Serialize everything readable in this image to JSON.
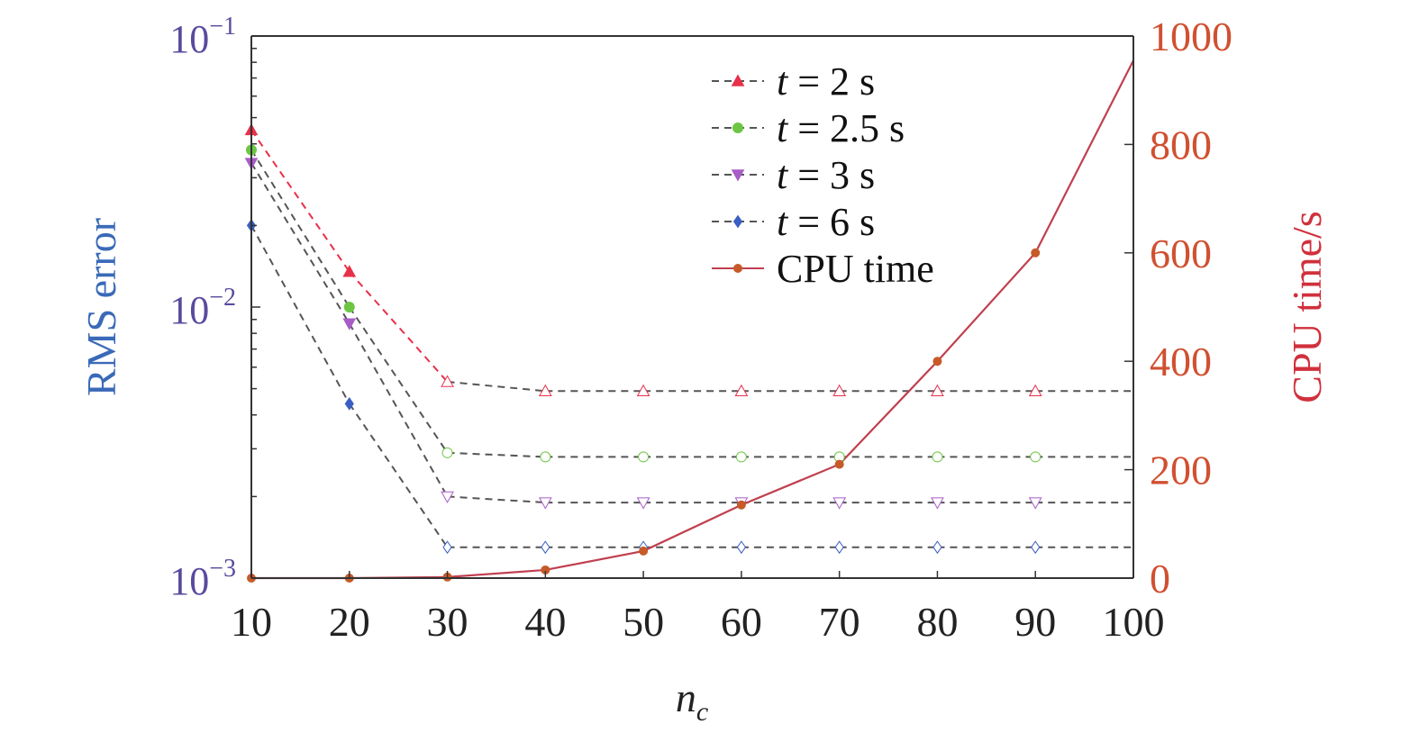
{
  "chart_data": {
    "type": "line",
    "x": [
      10,
      20,
      30,
      40,
      50,
      60,
      70,
      80,
      90,
      100
    ],
    "x_tick_labels": [
      "10",
      "20",
      "30",
      "40",
      "50",
      "60",
      "70",
      "80",
      "90",
      "100"
    ],
    "xlabel_main": "n",
    "xlabel_sub": "c",
    "xlim": [
      10,
      100
    ],
    "ylabel_left": "RMS error",
    "ylim_left": [
      0.001,
      0.1
    ],
    "y_scale_left": "log",
    "y_left_ticks": [
      {
        "base": "10",
        "exp": "−1",
        "value": 0.1
      },
      {
        "base": "10",
        "exp": "−2",
        "value": 0.01
      },
      {
        "base": "10",
        "exp": "−3",
        "value": 0.001
      }
    ],
    "ylabel_right": "CPU time/s",
    "ylim_right": [
      0,
      1000
    ],
    "y_right_ticks": [
      "0",
      "200",
      "400",
      "600",
      "800",
      "1000"
    ],
    "legend_position": "top-right",
    "grid": false,
    "series": [
      {
        "name_italic": "t",
        "name_rest": " = 2 s",
        "axis": "left",
        "marker": "triangle-up",
        "color": "#e8304a",
        "x": [
          10,
          20,
          30,
          40,
          50,
          60,
          70,
          80,
          90
        ],
        "values": [
          0.045,
          0.0135,
          0.0053,
          0.0049,
          0.0049,
          0.0049,
          0.0049,
          0.0049,
          0.0049
        ]
      },
      {
        "name_italic": "t",
        "name_rest": " = 2.5 s",
        "axis": "left",
        "marker": "circle",
        "color": "#6cc644",
        "x": [
          10,
          20,
          30,
          40,
          50,
          60,
          70,
          80,
          90
        ],
        "values": [
          0.038,
          0.01,
          0.0029,
          0.0028,
          0.0028,
          0.0028,
          0.0028,
          0.0028,
          0.0028
        ]
      },
      {
        "name_italic": "t",
        "name_rest": " = 3 s",
        "axis": "left",
        "marker": "triangle-down",
        "color": "#a85cc8",
        "x": [
          10,
          20,
          30,
          40,
          50,
          60,
          70,
          80,
          90
        ],
        "values": [
          0.034,
          0.0087,
          0.002,
          0.0019,
          0.0019,
          0.0019,
          0.0019,
          0.0019,
          0.0019
        ]
      },
      {
        "name_italic": "t",
        "name_rest": " = 6 s",
        "axis": "left",
        "marker": "diamond",
        "color": "#3a5fc4",
        "x": [
          10,
          20,
          30,
          40,
          50,
          60,
          70,
          80,
          90
        ],
        "values": [
          0.02,
          0.0044,
          0.0013,
          0.0013,
          0.0013,
          0.0013,
          0.0013,
          0.0013,
          0.0013
        ]
      },
      {
        "name_italic": "",
        "name_rest": "CPU time",
        "axis": "right",
        "marker": "dot",
        "color": "#c0404f",
        "x": [
          10,
          20,
          30,
          40,
          50,
          60,
          70,
          80,
          90,
          100
        ],
        "values": [
          0,
          0,
          2,
          15,
          50,
          135,
          210,
          400,
          600,
          955
        ]
      }
    ],
    "colors": {
      "left_axis_text": "#5a4a9e",
      "right_axis_text": "#d05030",
      "right_label": "#d0303c",
      "left_label": "#3a6ab8",
      "axis_line": "#333333",
      "dash_gray": "#555555",
      "cpu_marker": "#c65a28"
    }
  }
}
